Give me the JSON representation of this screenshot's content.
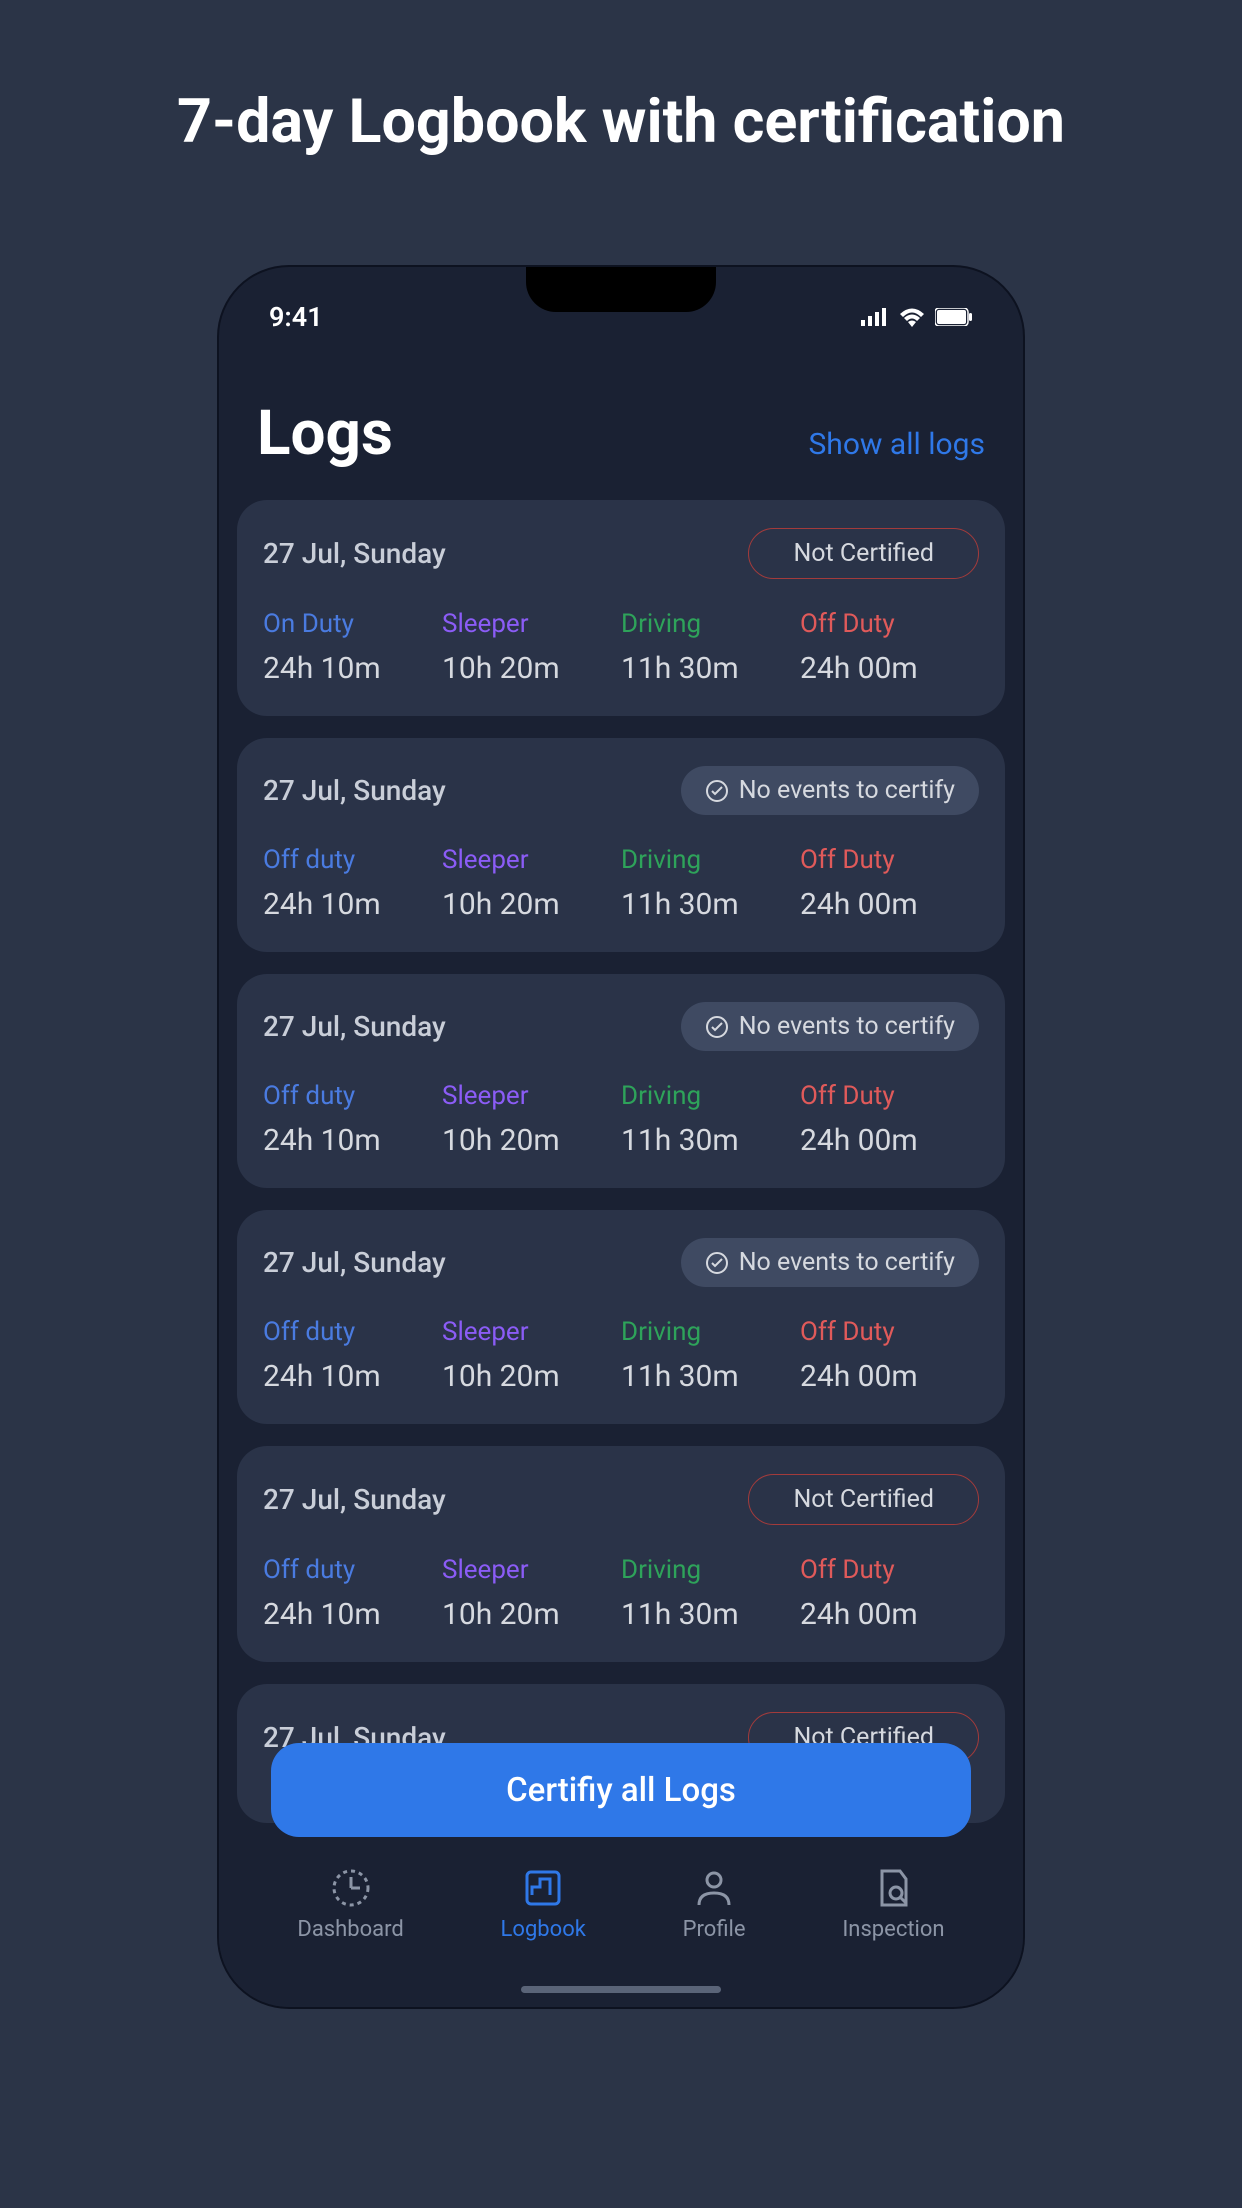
{
  "promo": {
    "title": "7-day Logbook with certification"
  },
  "statusBar": {
    "time": "9:41"
  },
  "header": {
    "title": "Logs",
    "showAll": "Show all logs"
  },
  "colors": {
    "onDuty": "#4a7be0",
    "offDutyBlue": "#4a7be0",
    "sleeper": "#8b5cf6",
    "driving": "#2ea35a",
    "offDutyRed": "#e05a5a"
  },
  "badges": {
    "notCertified": "Not Certified",
    "noEvents": "No events to certify"
  },
  "cards": [
    {
      "date": "27 Jul, Sunday",
      "badge": "notCertified",
      "stats": [
        {
          "label": "On Duty",
          "color": "onDuty",
          "value": "24h 10m"
        },
        {
          "label": "Sleeper",
          "color": "sleeper",
          "value": "10h 20m"
        },
        {
          "label": "Driving",
          "color": "driving",
          "value": "11h 30m"
        },
        {
          "label": "Off Duty",
          "color": "offDutyRed",
          "value": "24h 00m"
        }
      ]
    },
    {
      "date": "27 Jul, Sunday",
      "badge": "noEvents",
      "stats": [
        {
          "label": "Off duty",
          "color": "offDutyBlue",
          "value": "24h 10m"
        },
        {
          "label": "Sleeper",
          "color": "sleeper",
          "value": "10h 20m"
        },
        {
          "label": "Driving",
          "color": "driving",
          "value": "11h 30m"
        },
        {
          "label": "Off Duty",
          "color": "offDutyRed",
          "value": "24h 00m"
        }
      ]
    },
    {
      "date": "27 Jul, Sunday",
      "badge": "noEvents",
      "stats": [
        {
          "label": "Off duty",
          "color": "offDutyBlue",
          "value": "24h 10m"
        },
        {
          "label": "Sleeper",
          "color": "sleeper",
          "value": "10h 20m"
        },
        {
          "label": "Driving",
          "color": "driving",
          "value": "11h 30m"
        },
        {
          "label": "Off Duty",
          "color": "offDutyRed",
          "value": "24h 00m"
        }
      ]
    },
    {
      "date": "27 Jul, Sunday",
      "badge": "noEvents",
      "stats": [
        {
          "label": "Off duty",
          "color": "offDutyBlue",
          "value": "24h 10m"
        },
        {
          "label": "Sleeper",
          "color": "sleeper",
          "value": "10h 20m"
        },
        {
          "label": "Driving",
          "color": "driving",
          "value": "11h 30m"
        },
        {
          "label": "Off Duty",
          "color": "offDutyRed",
          "value": "24h 00m"
        }
      ]
    },
    {
      "date": "27 Jul, Sunday",
      "badge": "notCertified",
      "stats": [
        {
          "label": "Off duty",
          "color": "offDutyBlue",
          "value": "24h 10m"
        },
        {
          "label": "Sleeper",
          "color": "sleeper",
          "value": "10h 20m"
        },
        {
          "label": "Driving",
          "color": "driving",
          "value": "11h 30m"
        },
        {
          "label": "Off Duty",
          "color": "offDutyRed",
          "value": "24h 00m"
        }
      ]
    },
    {
      "date": "27 Jul, Sunday",
      "badge": "notCertified",
      "stats": []
    }
  ],
  "certifyButton": "Certifiy all Logs",
  "tabs": [
    {
      "label": "Dashboard",
      "icon": "dashboard",
      "active": false
    },
    {
      "label": "Logbook",
      "icon": "logbook",
      "active": true
    },
    {
      "label": "Profile",
      "icon": "profile",
      "active": false
    },
    {
      "label": "Inspection",
      "icon": "inspection",
      "active": false
    }
  ]
}
